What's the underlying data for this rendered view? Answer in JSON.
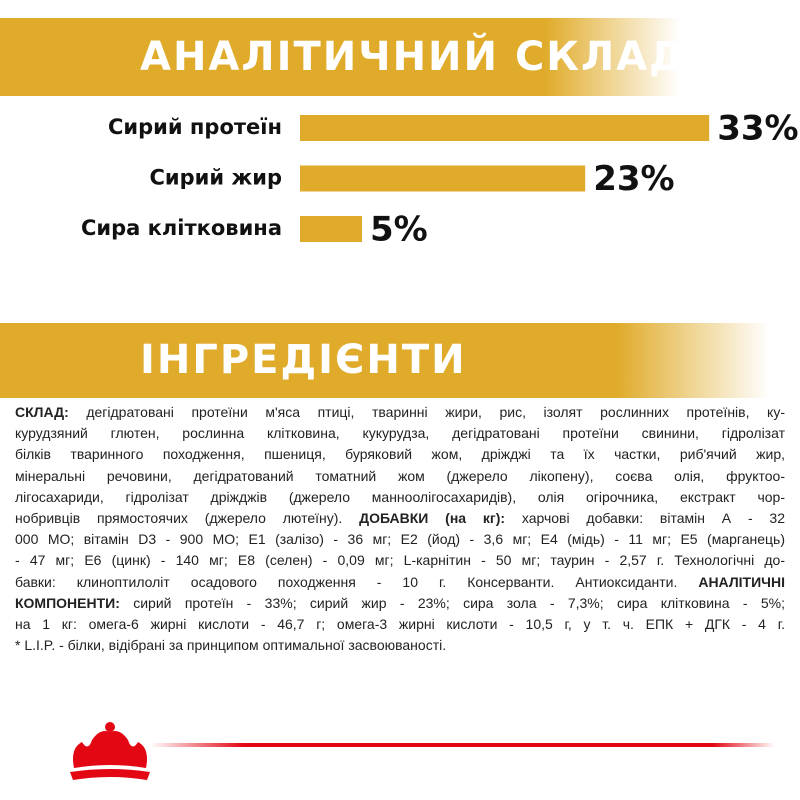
{
  "chart_data": {
    "type": "bar",
    "orientation": "horizontal",
    "title": "АНАЛІТИЧНИЙ СКЛАД",
    "categories": [
      "Сирий протеїн",
      "Сирий жир",
      "Сира клітковина"
    ],
    "values": [
      33,
      23,
      5
    ],
    "value_labels": [
      "33%",
      "23%",
      "5%"
    ],
    "color": "#e0ab2a"
  },
  "ingredients": {
    "title": "ІНГРЕДІЄНТИ",
    "lines": [
      [
        {
          "text": "СКЛАД:",
          "bold": true
        },
        {
          "text": " дегідратовані протеїни м'яса птиці, тваринні жири, рис, ізолят рослинних протеїнів, ку-",
          "bold": false
        }
      ],
      [
        {
          "text": "курудзяний глютен, рослинна клітковина, кукурудза, дегідратовані протеїни свинини, гідролізат",
          "bold": false
        }
      ],
      [
        {
          "text": "білків тваринного походження, пшениця, буряковий жом, дріжджі та їх частки, риб'ячий жир,",
          "bold": false
        }
      ],
      [
        {
          "text": "мінеральні речовини, дегідратований томатний жом (джерело лікопену), соєва олія, фруктоо-",
          "bold": false
        }
      ],
      [
        {
          "text": "лігосахариди, гідролізат дріжджів (джерело манноолігосахаридів), олія огірочника, екстракт чор-",
          "bold": false
        }
      ],
      [
        {
          "text": "нобривців прямостоячих (джерело лютеїну). ",
          "bold": false
        },
        {
          "text": "ДОБАВКИ (на кг):",
          "bold": true
        },
        {
          "text": " харчові добавки: вітамін А - 32",
          "bold": false
        }
      ],
      [
        {
          "text": "000 МО; вітамін D3 - 900 МО; Е1 (залізо) - 36 мг; Е2 (йод) - 3,6 мг; Е4 (мідь) - 11 мг; Е5 (марганець)",
          "bold": false
        }
      ],
      [
        {
          "text": "- 47 мг; Е6 (цинк) - 140 мг; Е8 (селен) - 0,09 мг; L-карнітин - 50 мг; таурин - 2,57 г. Технологічні до-",
          "bold": false
        }
      ],
      [
        {
          "text": "бавки: клиноптилоліт осадового походження - 10 г. Консерванти. Антиоксиданти. ",
          "bold": false
        },
        {
          "text": "АНАЛІТИЧНІ",
          "bold": true
        }
      ],
      [
        {
          "text": "КОМПОНЕНТИ:",
          "bold": true
        },
        {
          "text": " сирий протеїн - 33%; сирий жир - 23%; сира зола - 7,3%; сира клітковина - 5%;",
          "bold": false
        }
      ],
      [
        {
          "text": "на 1 кг: омега-6 жирні кислоти - 46,7 г; омега-3 жирні кислоти - 10,5 г, у т. ч. ЕПК + ДГК - 4 г.",
          "bold": false
        }
      ],
      [
        {
          "text": "* L.I.P. - білки, відібрані за принципом оптимальної засвоюваності.",
          "bold": false
        }
      ]
    ]
  }
}
